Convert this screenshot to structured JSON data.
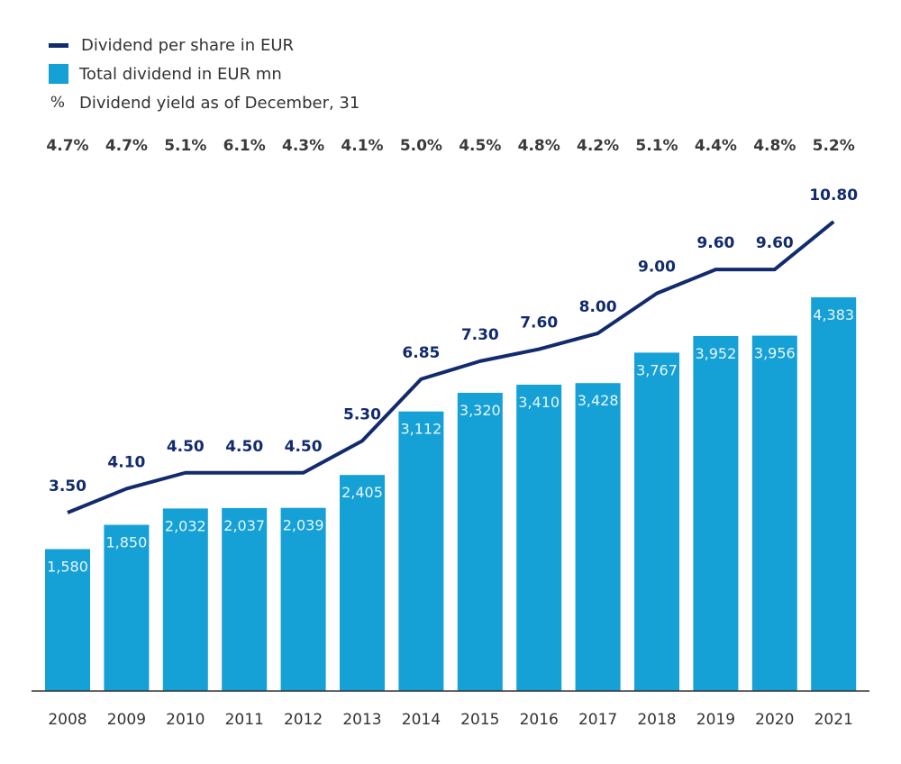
{
  "legend": {
    "line_label": "Dividend per share in EUR",
    "bar_label": "Total dividend in EUR mn",
    "pct_symbol": "%",
    "pct_label": "Dividend yield as of December, 31"
  },
  "colors": {
    "bar": "#15a0d6",
    "line": "#122b6e",
    "text": "#333333",
    "axis": "#333333"
  },
  "chart_data": {
    "type": "bar",
    "title": "",
    "xlabel": "",
    "ylabel": "",
    "categories": [
      "2008",
      "2009",
      "2010",
      "2011",
      "2012",
      "2013",
      "2014",
      "2015",
      "2016",
      "2017",
      "2018",
      "2019",
      "2020",
      "2021"
    ],
    "series": [
      {
        "name": "Total dividend in EUR mn",
        "type": "bar",
        "values": [
          1580,
          1850,
          2032,
          2037,
          2039,
          2405,
          3112,
          3320,
          3410,
          3428,
          3767,
          3952,
          3956,
          4383
        ],
        "labels": [
          "1,580",
          "1,850",
          "2,032",
          "2,037",
          "2,039",
          "2,405",
          "3,112",
          "3,320",
          "3,410",
          "3,428",
          "3,767",
          "3,952",
          "3,956",
          "4,383"
        ]
      },
      {
        "name": "Dividend per share in EUR",
        "type": "line",
        "values": [
          3.5,
          4.1,
          4.5,
          4.5,
          4.5,
          5.3,
          6.85,
          7.3,
          7.6,
          8.0,
          9.0,
          9.6,
          9.6,
          10.8
        ],
        "labels": [
          "3.50",
          "4.10",
          "4.50",
          "4.50",
          "4.50",
          "5.30",
          "6.85",
          "7.30",
          "7.60",
          "8.00",
          "9.00",
          "9.60",
          "9.60",
          "10.80"
        ]
      },
      {
        "name": "Dividend yield as of December, 31",
        "type": "annotation",
        "values": [
          4.7,
          4.7,
          5.1,
          6.1,
          4.3,
          4.1,
          5.0,
          4.5,
          4.8,
          4.2,
          5.1,
          4.4,
          4.8,
          5.2
        ],
        "labels": [
          "4.7%",
          "4.7%",
          "5.1%",
          "6.1%",
          "4.3%",
          "4.1%",
          "5.0%",
          "4.5%",
          "4.8%",
          "4.2%",
          "5.1%",
          "4.4%",
          "4.8%",
          "5.2%"
        ]
      }
    ],
    "bar_axis_range": [
      0,
      4383
    ],
    "line_axis_range": [
      3.5,
      10.8
    ],
    "grid": false,
    "legend_position": "top-left"
  }
}
